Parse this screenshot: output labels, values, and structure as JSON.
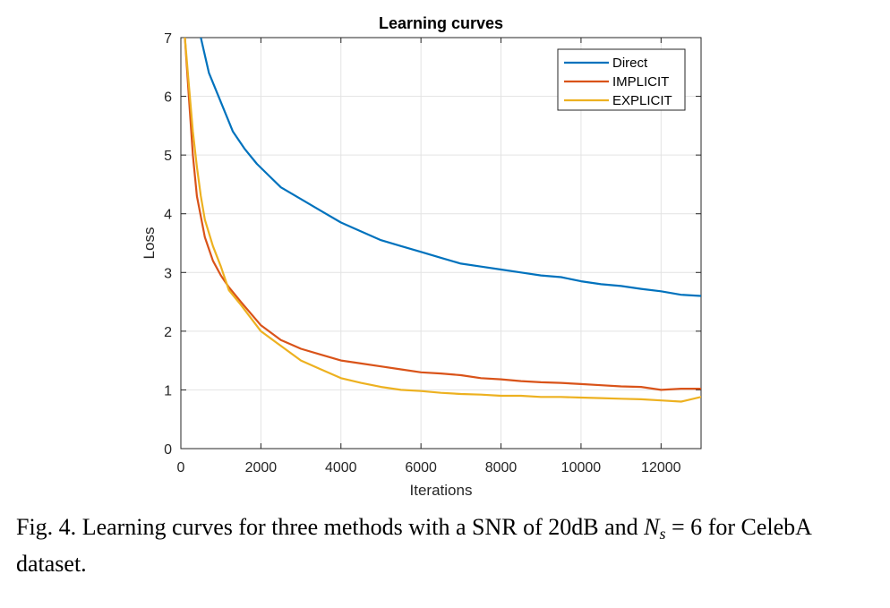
{
  "chart_data": {
    "type": "line",
    "title": "Learning curves",
    "xlabel": "Iterations",
    "ylabel": "Loss",
    "xlim": [
      0,
      13000
    ],
    "ylim": [
      0,
      7
    ],
    "xticks": [
      0,
      2000,
      4000,
      6000,
      8000,
      10000,
      12000
    ],
    "xtick_labels": [
      "0",
      "2000",
      "4000",
      "6000",
      "8000",
      "10000",
      "12000"
    ],
    "yticks": [
      0,
      1,
      2,
      3,
      4,
      5,
      6,
      7
    ],
    "ytick_labels": [
      "0",
      "1",
      "2",
      "3",
      "4",
      "5",
      "6",
      "7"
    ],
    "grid": true,
    "legend_position": "top-right",
    "series": [
      {
        "name": "Direct",
        "color": "#0072BD",
        "x": [
          500,
          700,
          1000,
          1300,
          1600,
          1900,
          2200,
          2500,
          3000,
          3500,
          4000,
          4500,
          5000,
          5500,
          6000,
          6500,
          7000,
          7500,
          8000,
          8500,
          9000,
          9500,
          10000,
          10500,
          11000,
          11500,
          12000,
          12500,
          13000
        ],
        "y": [
          7.0,
          6.4,
          5.9,
          5.4,
          5.1,
          4.85,
          4.65,
          4.45,
          4.25,
          4.05,
          3.85,
          3.7,
          3.55,
          3.45,
          3.35,
          3.25,
          3.15,
          3.1,
          3.05,
          3.0,
          2.95,
          2.92,
          2.85,
          2.8,
          2.77,
          2.72,
          2.68,
          2.62,
          2.6
        ]
      },
      {
        "name": "IMPLICIT",
        "color": "#D95319",
        "x": [
          100,
          200,
          300,
          400,
          600,
          800,
          1000,
          1200,
          1500,
          2000,
          2500,
          3000,
          3500,
          4000,
          4500,
          5000,
          5500,
          6000,
          6500,
          7000,
          7500,
          8000,
          8500,
          9000,
          9500,
          10000,
          10500,
          11000,
          11500,
          12000,
          12500,
          13000
        ],
        "y": [
          7.0,
          6.0,
          5.0,
          4.3,
          3.6,
          3.2,
          2.95,
          2.75,
          2.5,
          2.1,
          1.85,
          1.7,
          1.6,
          1.5,
          1.45,
          1.4,
          1.35,
          1.3,
          1.28,
          1.25,
          1.2,
          1.18,
          1.15,
          1.13,
          1.12,
          1.1,
          1.08,
          1.06,
          1.05,
          1.0,
          1.02,
          1.02
        ]
      },
      {
        "name": "EXPLICIT",
        "color": "#EDB120",
        "x": [
          100,
          200,
          300,
          400,
          500,
          600,
          800,
          1000,
          1200,
          1500,
          2000,
          2500,
          3000,
          3500,
          4000,
          4500,
          5000,
          5500,
          6000,
          6500,
          7000,
          7500,
          8000,
          8500,
          9000,
          9500,
          10000,
          10500,
          11000,
          11500,
          12000,
          12500,
          13000
        ],
        "y": [
          7.0,
          6.2,
          5.4,
          4.8,
          4.3,
          3.9,
          3.45,
          3.1,
          2.7,
          2.45,
          2.0,
          1.75,
          1.5,
          1.35,
          1.2,
          1.12,
          1.05,
          1.0,
          0.98,
          0.95,
          0.93,
          0.92,
          0.9,
          0.9,
          0.88,
          0.88,
          0.87,
          0.86,
          0.85,
          0.84,
          0.82,
          0.8,
          0.88
        ]
      }
    ]
  },
  "caption": {
    "prefix": "Fig. 4.",
    "text_part1": "Learning curves for three methods with a SNR of 20dB and",
    "math_var": "N",
    "math_sub": "s",
    "math_rest": "= 6",
    "text_part2": "for CelebA dataset."
  }
}
